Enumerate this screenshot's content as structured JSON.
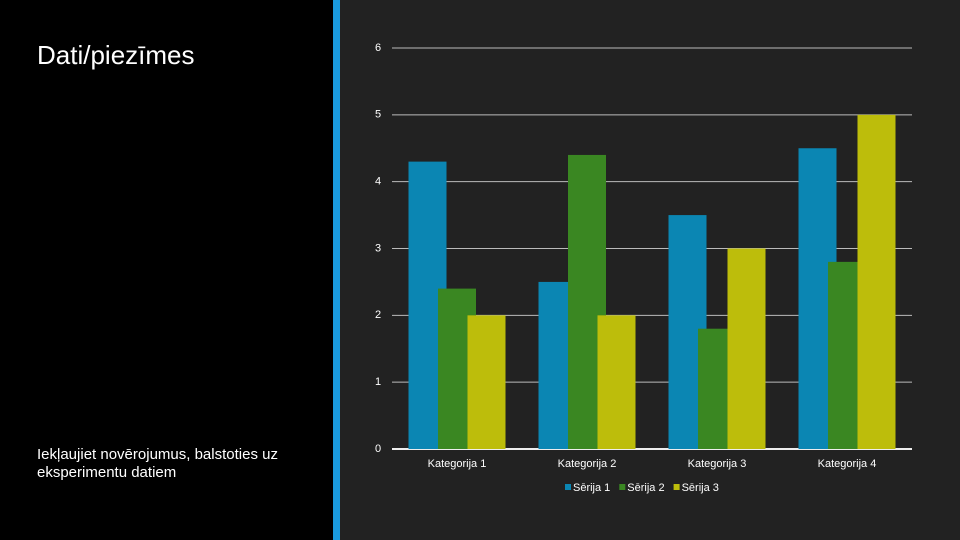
{
  "slide": {
    "title": "Dati/piezīmes",
    "notes": "Iekļaujiet novērojumus, balstoties uz eksperimentu datiem"
  },
  "chart_data": {
    "type": "bar",
    "categories": [
      "Kategorija 1",
      "Kategorija 2",
      "Kategorija 3",
      "Kategorija 4"
    ],
    "series": [
      {
        "name": "Sērija 1",
        "color": "#0b86b3",
        "values": [
          4.3,
          2.5,
          3.5,
          4.5
        ]
      },
      {
        "name": "Sērija 2",
        "color": "#3a8722",
        "values": [
          2.4,
          4.4,
          1.8,
          2.8
        ]
      },
      {
        "name": "Sērija 3",
        "color": "#bdbd0b",
        "values": [
          2,
          2,
          3,
          5
        ]
      }
    ],
    "ylim": [
      0,
      6
    ],
    "yticks": [
      0,
      1,
      2,
      3,
      4,
      5,
      6
    ],
    "grid": true,
    "legend": "bottom"
  }
}
